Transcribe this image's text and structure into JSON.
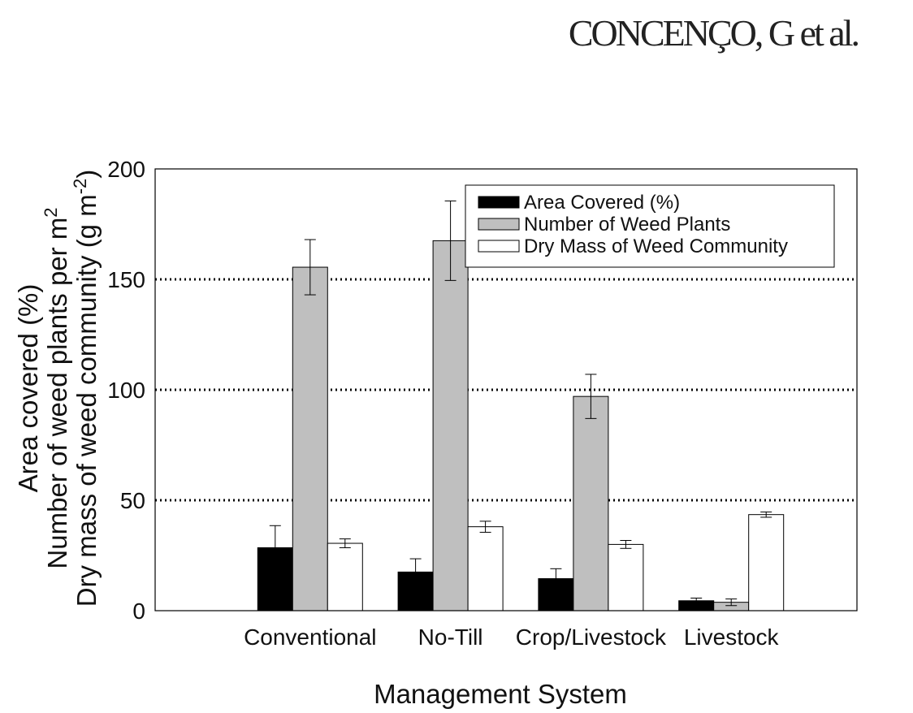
{
  "header": {
    "author_line": "CONCENÇO, G et al."
  },
  "chart_data": {
    "type": "bar",
    "xlabel": "Management System",
    "ylabel_lines": [
      {
        "text": "Area covered (%)",
        "sup": ""
      },
      {
        "text": "Number of weed plants per m",
        "sup": "2"
      },
      {
        "text": "Dry mass of weed community (g m",
        "sup": "-2",
        "tail": ")"
      }
    ],
    "categories": [
      "Conventional",
      "No-Till",
      "Crop/Livestock",
      "Livestock"
    ],
    "ylim": [
      0,
      200
    ],
    "yticks": [
      0,
      50,
      100,
      150,
      200
    ],
    "gridlines": [
      50,
      100,
      150
    ],
    "grid_style": "dotted",
    "legend_position": "top-right",
    "series": [
      {
        "name": "Area Covered (%)",
        "color": "#000000",
        "values": [
          28.5,
          17.5,
          14.5,
          4.5
        ],
        "errors": [
          10.0,
          6.0,
          4.5,
          1.2
        ]
      },
      {
        "name": "Number of Weed Plants",
        "color": "#bfbfbf",
        "values": [
          155.5,
          167.5,
          97.0,
          3.8
        ],
        "errors": [
          12.5,
          18.0,
          10.0,
          1.5
        ]
      },
      {
        "name": "Dry Mass of Weed Community",
        "color": "#ffffff",
        "values": [
          30.5,
          38.0,
          30.0,
          43.5
        ],
        "errors": [
          2.0,
          2.5,
          1.8,
          1.2
        ]
      }
    ]
  }
}
